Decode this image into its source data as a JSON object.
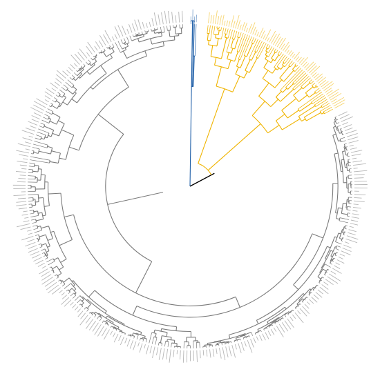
{
  "dendrogram": {
    "clades": [
      {
        "color": "#1f5fa8"
      },
      {
        "color": "#f0b400"
      },
      {
        "color": "#7a7a7a"
      }
    ],
    "root_color": "#000000"
  }
}
